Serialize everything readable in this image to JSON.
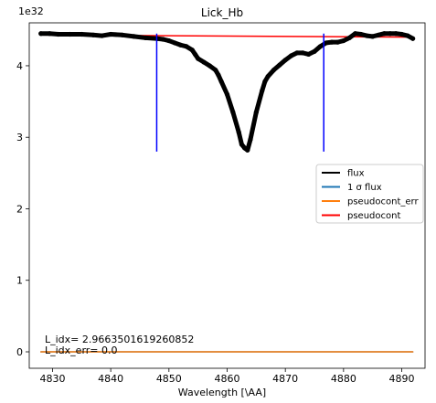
{
  "chart_data": {
    "type": "line",
    "title": "Lick_Hb",
    "xlabel": "Wavelength [\\AA]",
    "ylabel": "",
    "y_scale_label": "1e32",
    "xlim": [
      4826,
      4894
    ],
    "ylim": [
      -0.23,
      4.6
    ],
    "x_ticks": [
      4830,
      4840,
      4850,
      4860,
      4870,
      4880,
      4890
    ],
    "y_ticks": [
      0,
      1,
      2,
      3,
      4
    ],
    "x_tick_labels": [
      "4830",
      "4840",
      "4850",
      "4860",
      "4870",
      "4880",
      "4890"
    ],
    "y_tick_labels": [
      "0",
      "1",
      "2",
      "3",
      "4"
    ],
    "series": [
      {
        "name": "flux",
        "color": "#000000",
        "style": "thick-markers",
        "x": [
          4828.0,
          4829.5,
          4831.0,
          4833.0,
          4835.0,
          4837.0,
          4838.5,
          4840.0,
          4842.0,
          4844.0,
          4846.0,
          4848.0,
          4849.0,
          4850.0,
          4851.0,
          4852.0,
          4853.0,
          4854.0,
          4854.5,
          4855.0,
          4856.0,
          4857.0,
          4858.0,
          4858.5,
          4859.0,
          4860.0,
          4861.0,
          4862.0,
          4862.5,
          4863.0,
          4863.5,
          4864.0,
          4865.0,
          4866.0,
          4866.5,
          4867.0,
          4868.0,
          4869.0,
          4870.0,
          4871.0,
          4872.0,
          4873.0,
          4874.0,
          4875.0,
          4876.0,
          4877.0,
          4878.0,
          4879.0,
          4880.0,
          4881.0,
          4882.0,
          4883.0,
          4884.0,
          4885.0,
          4886.0,
          4887.0,
          4888.0,
          4889.0,
          4890.0,
          4891.0,
          4891.9
        ],
        "y": [
          4.45,
          4.45,
          4.44,
          4.44,
          4.44,
          4.43,
          4.42,
          4.44,
          4.43,
          4.41,
          4.39,
          4.38,
          4.37,
          4.35,
          4.32,
          4.29,
          4.27,
          4.22,
          4.16,
          4.1,
          4.05,
          4.0,
          3.94,
          3.87,
          3.78,
          3.6,
          3.35,
          3.07,
          2.9,
          2.85,
          2.82,
          2.97,
          3.35,
          3.65,
          3.78,
          3.85,
          3.94,
          4.01,
          4.08,
          4.14,
          4.18,
          4.18,
          4.16,
          4.2,
          4.27,
          4.32,
          4.33,
          4.33,
          4.35,
          4.39,
          4.45,
          4.44,
          4.42,
          4.41,
          4.43,
          4.45,
          4.45,
          4.45,
          4.44,
          4.42,
          4.38
        ]
      },
      {
        "name": "1 σ flux",
        "color": "#1f77b4",
        "x": [
          4828.0,
          4891.9
        ],
        "y": [
          0.0,
          0.0
        ]
      },
      {
        "name": "pseudocont_err",
        "color": "#ff7f0e",
        "x": [
          4828.0,
          4891.9
        ],
        "y": [
          0.0,
          0.0
        ]
      },
      {
        "name": "pseudocont",
        "color": "#ff0000",
        "x": [
          4828.0,
          4891.9
        ],
        "y": [
          4.43,
          4.4
        ]
      }
    ],
    "vlines": [
      {
        "x": 4847.9,
        "y0": 2.8,
        "y1": 4.45,
        "color": "#0000ff"
      },
      {
        "x": 4876.6,
        "y0": 2.8,
        "y1": 4.45,
        "color": "#0000ff"
      }
    ],
    "annotations": [
      "L_idx= 2.9663501619260852",
      " L_idx_err= 0.0"
    ],
    "legend": {
      "placement": "center-right",
      "entries": [
        {
          "label": "flux",
          "color": "#000000"
        },
        {
          "label": "1 σ flux",
          "color": "#1f77b4"
        },
        {
          "label": "pseudocont_err",
          "color": "#ff7f0e"
        },
        {
          "label": "pseudocont",
          "color": "#ff0000"
        }
      ]
    },
    "grid": false
  }
}
